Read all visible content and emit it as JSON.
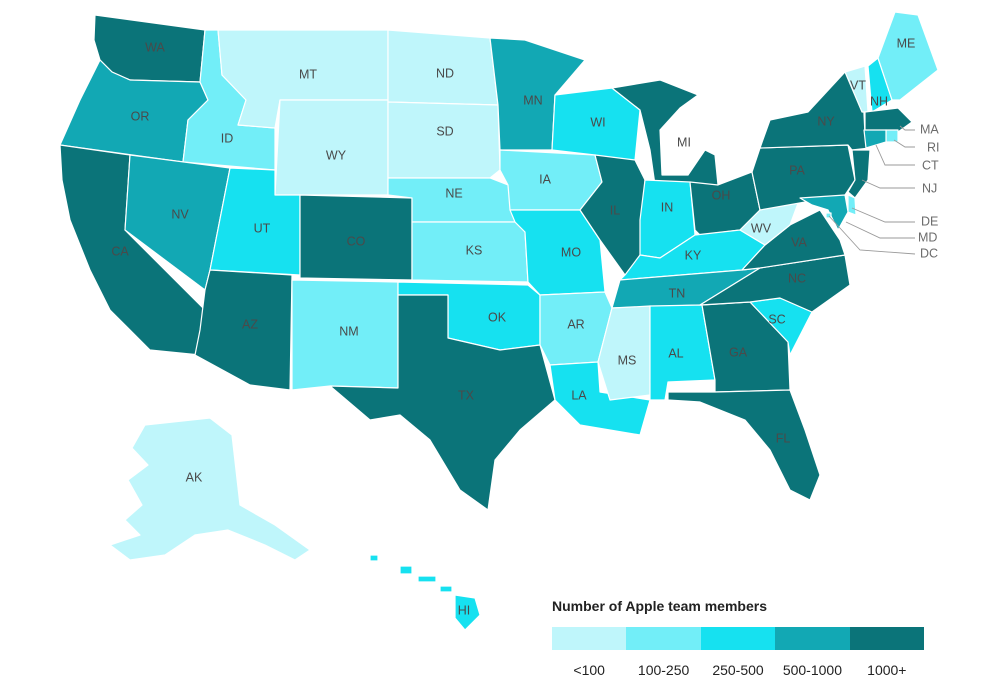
{
  "legend": {
    "title": "Number of Apple team members",
    "bins": [
      {
        "label": "<100",
        "color": "#bff6fb"
      },
      {
        "label": "100-250",
        "color": "#72eef8"
      },
      {
        "label": "250-500",
        "color": "#16e1f0"
      },
      {
        "label": "500-1000",
        "color": "#12a8b4"
      },
      {
        "label": "1000+",
        "color": "#0b7479"
      }
    ]
  },
  "states": [
    {
      "code": "WA",
      "bin": 4
    },
    {
      "code": "OR",
      "bin": 3
    },
    {
      "code": "CA",
      "bin": 4
    },
    {
      "code": "ID",
      "bin": 1
    },
    {
      "code": "NV",
      "bin": 3
    },
    {
      "code": "MT",
      "bin": 0
    },
    {
      "code": "WY",
      "bin": 0
    },
    {
      "code": "UT",
      "bin": 2
    },
    {
      "code": "AZ",
      "bin": 4
    },
    {
      "code": "CO",
      "bin": 4
    },
    {
      "code": "NM",
      "bin": 1
    },
    {
      "code": "ND",
      "bin": 0
    },
    {
      "code": "SD",
      "bin": 0
    },
    {
      "code": "NE",
      "bin": 1
    },
    {
      "code": "KS",
      "bin": 1
    },
    {
      "code": "OK",
      "bin": 2
    },
    {
      "code": "TX",
      "bin": 4
    },
    {
      "code": "MN",
      "bin": 3
    },
    {
      "code": "IA",
      "bin": 1
    },
    {
      "code": "MO",
      "bin": 2
    },
    {
      "code": "AR",
      "bin": 1
    },
    {
      "code": "LA",
      "bin": 2
    },
    {
      "code": "WI",
      "bin": 2
    },
    {
      "code": "IL",
      "bin": 4
    },
    {
      "code": "MI",
      "bin": 4
    },
    {
      "code": "IN",
      "bin": 2
    },
    {
      "code": "OH",
      "bin": 4
    },
    {
      "code": "KY",
      "bin": 2
    },
    {
      "code": "TN",
      "bin": 3
    },
    {
      "code": "MS",
      "bin": 0
    },
    {
      "code": "AL",
      "bin": 2
    },
    {
      "code": "GA",
      "bin": 4
    },
    {
      "code": "FL",
      "bin": 4
    },
    {
      "code": "SC",
      "bin": 2
    },
    {
      "code": "NC",
      "bin": 4
    },
    {
      "code": "VA",
      "bin": 4
    },
    {
      "code": "WV",
      "bin": 0
    },
    {
      "code": "PA",
      "bin": 4
    },
    {
      "code": "NY",
      "bin": 4
    },
    {
      "code": "VT",
      "bin": 0
    },
    {
      "code": "NH",
      "bin": 2
    },
    {
      "code": "ME",
      "bin": 1
    },
    {
      "code": "MA",
      "bin": 4
    },
    {
      "code": "RI",
      "bin": 1
    },
    {
      "code": "CT",
      "bin": 3
    },
    {
      "code": "NJ",
      "bin": 4
    },
    {
      "code": "DE",
      "bin": 1
    },
    {
      "code": "MD",
      "bin": 3
    },
    {
      "code": "DC",
      "bin": 1
    },
    {
      "code": "AK",
      "bin": 0
    },
    {
      "code": "HI",
      "bin": 2
    }
  ]
}
